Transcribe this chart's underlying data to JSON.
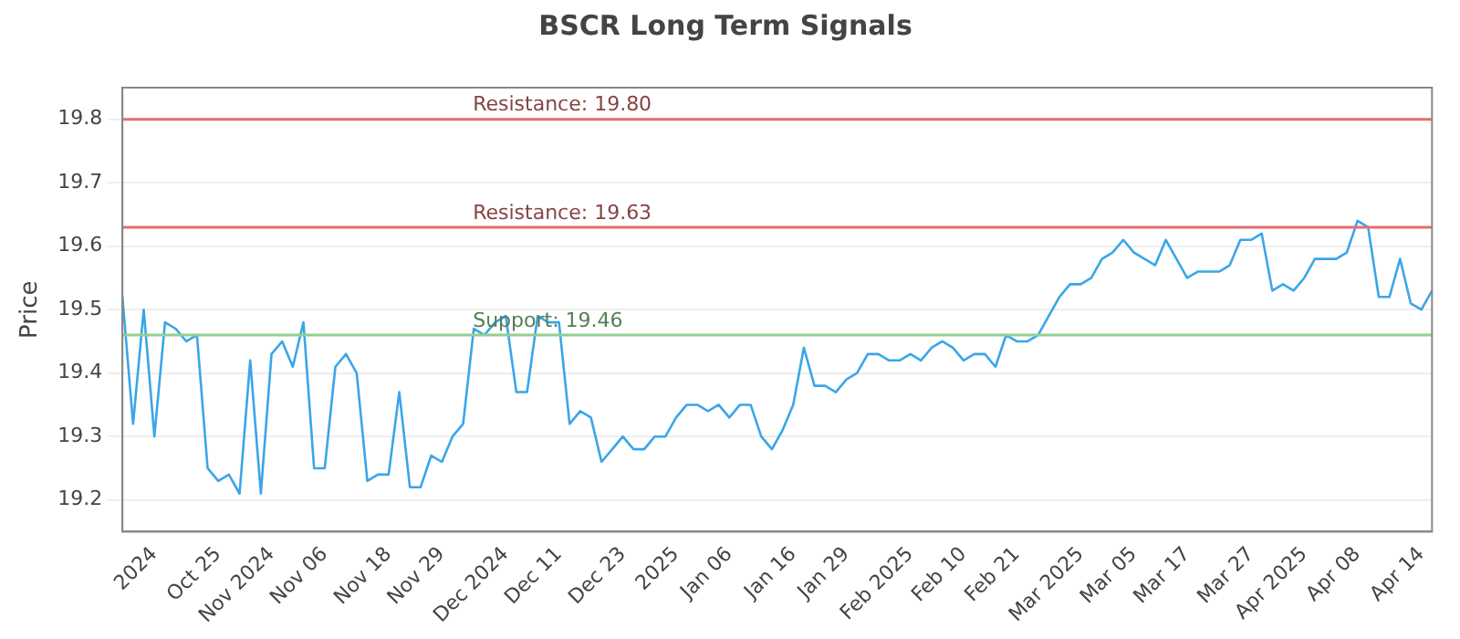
{
  "chart_data": {
    "type": "line",
    "title": "BSCR Long Term Signals",
    "ylabel": "Price",
    "categories": [
      null,
      null,
      null,
      "2024",
      null,
      null,
      null,
      null,
      null,
      "Oct 25",
      null,
      null,
      null,
      null,
      "Nov 2024",
      null,
      null,
      null,
      null,
      "Nov 06",
      null,
      null,
      null,
      null,
      null,
      "Nov 18",
      null,
      null,
      null,
      null,
      "Nov 29",
      null,
      null,
      null,
      null,
      null,
      "Dec 2024",
      null,
      null,
      null,
      null,
      "Dec 11",
      null,
      null,
      null,
      null,
      null,
      "Dec 23",
      null,
      null,
      null,
      null,
      "2025",
      null,
      null,
      null,
      null,
      "Jan 06",
      null,
      null,
      null,
      null,
      null,
      "Jan 16",
      null,
      null,
      null,
      null,
      "Jan 29",
      null,
      null,
      null,
      null,
      null,
      "Feb 2025",
      null,
      null,
      null,
      null,
      "Feb 10",
      null,
      null,
      null,
      null,
      "Feb 21",
      null,
      null,
      null,
      null,
      null,
      "Mar 2025",
      null,
      null,
      null,
      null,
      "Mar 05",
      null,
      null,
      null,
      null,
      "Mar 17",
      null,
      null,
      null,
      null,
      null,
      "Mar 27",
      null,
      null,
      null,
      null,
      "Apr 2025",
      null,
      null,
      null,
      null,
      "Apr 08",
      null,
      null,
      null,
      null,
      null,
      "Apr 14",
      null
    ],
    "series": [
      {
        "color": "#3aa6e8",
        "values": [
          19.52,
          19.32,
          19.5,
          19.3,
          19.48,
          19.47,
          19.45,
          19.46,
          19.25,
          19.23,
          19.24,
          19.21,
          19.42,
          19.21,
          19.43,
          19.45,
          19.41,
          19.48,
          19.25,
          19.25,
          19.41,
          19.43,
          19.4,
          19.23,
          19.24,
          19.24,
          19.37,
          19.22,
          19.22,
          19.27,
          19.26,
          19.3,
          19.32,
          19.47,
          19.46,
          19.48,
          19.49,
          19.37,
          19.37,
          19.49,
          19.48,
          19.48,
          19.32,
          19.34,
          19.33,
          19.26,
          19.28,
          19.3,
          19.28,
          19.28,
          19.3,
          19.3,
          19.33,
          19.35,
          19.35,
          19.34,
          19.35,
          19.33,
          19.35,
          19.35,
          19.3,
          19.28,
          19.31,
          19.35,
          19.44,
          19.38,
          19.38,
          19.37,
          19.39,
          19.4,
          19.43,
          19.43,
          19.42,
          19.42,
          19.43,
          19.42,
          19.44,
          19.45,
          19.44,
          19.42,
          19.43,
          19.43,
          19.41,
          19.46,
          19.45,
          19.45,
          19.46,
          19.49,
          19.52,
          19.54,
          19.54,
          19.55,
          19.58,
          19.59,
          19.61,
          19.59,
          19.58,
          19.57,
          19.61,
          19.58,
          19.55,
          19.56,
          19.56,
          19.56,
          19.57,
          19.61,
          19.61,
          19.62,
          19.53,
          19.54,
          19.53,
          19.55,
          19.58,
          19.58,
          19.58,
          19.59,
          19.64,
          19.63,
          19.52,
          19.52,
          19.58,
          19.51,
          19.5,
          19.53
        ]
      }
    ],
    "ylim": [
      19.15,
      19.85
    ],
    "yticks": [
      19.2,
      19.3,
      19.4,
      19.5,
      19.6,
      19.7,
      19.8
    ],
    "grid": "y",
    "legend": false,
    "marker": "none",
    "line_style": "solid",
    "ref_lines": [
      {
        "axis": "y",
        "value": 19.8,
        "label": "Resistance: 19.80",
        "color": "#e07070"
      },
      {
        "axis": "y",
        "value": 19.63,
        "label": "Resistance: 19.63",
        "color": "#e07070"
      },
      {
        "axis": "y",
        "value": 19.46,
        "label": "Support: 19.46",
        "color": "#90d090"
      }
    ]
  }
}
